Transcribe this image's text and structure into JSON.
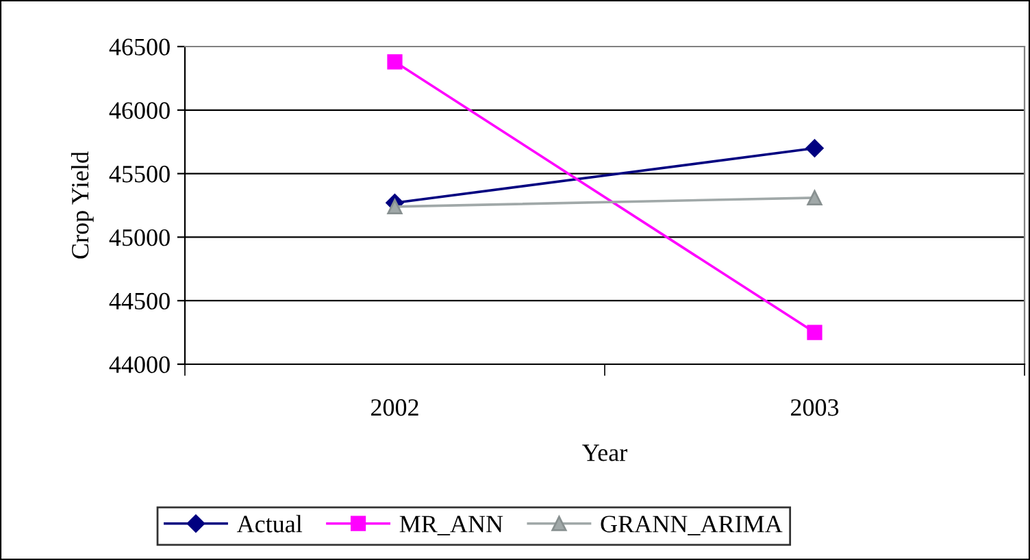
{
  "chart_data": {
    "type": "line",
    "xlabel": "Year",
    "ylabel": "Crop Yield",
    "categories": [
      "2002",
      "2003"
    ],
    "series": [
      {
        "name": "Actual",
        "color": "#000080",
        "marker": "diamond",
        "values": [
          45270,
          45700
        ]
      },
      {
        "name": "MR_ANN",
        "color": "#ff00ff",
        "marker": "square",
        "values": [
          46380,
          44250
        ]
      },
      {
        "name": "GRANN_ARIMA",
        "color": "#a0a8a8",
        "marker": "triangle",
        "values": [
          45240,
          45310
        ]
      }
    ],
    "ylim": [
      44000,
      46500
    ],
    "yticks": [
      44000,
      44500,
      45000,
      45500,
      46000,
      46500
    ],
    "grid": "y",
    "legend": "bottom"
  }
}
